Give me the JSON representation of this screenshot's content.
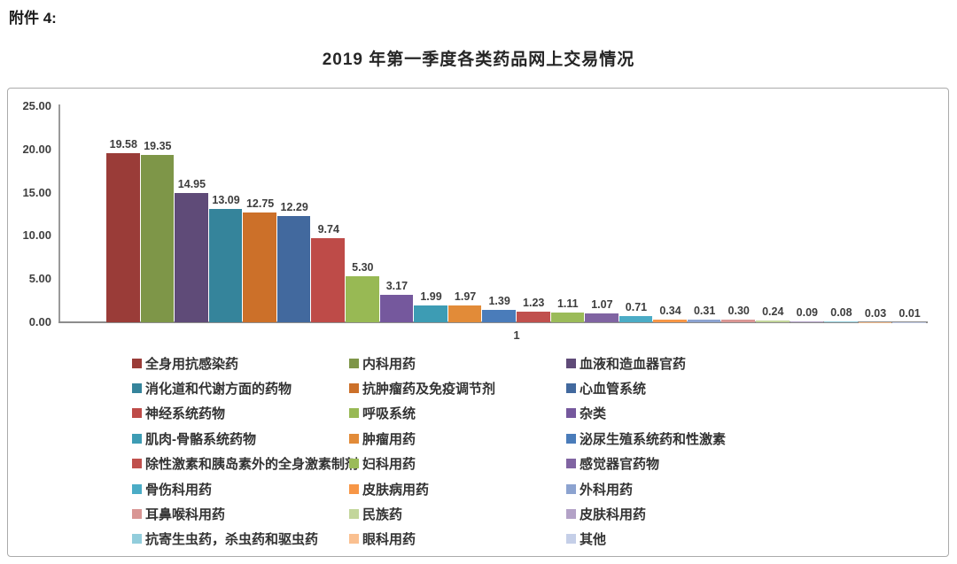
{
  "document": {
    "attachment_label": "附件 4:",
    "title": "2019 年第一季度各类药品网上交易情况"
  },
  "chart_data": {
    "type": "bar",
    "title": "2019 年第一季度各类药品网上交易情况",
    "categories": [
      "1"
    ],
    "ylim": [
      0,
      25
    ],
    "y_tick_labels": [
      "25.00",
      "20.00",
      "15.00",
      "10.00",
      "5.00",
      "0.00"
    ],
    "grid": false,
    "legend_position": "bottom",
    "value_labels_shown": true,
    "series": [
      {
        "name": "全身用抗感染药",
        "value": 19.58,
        "color": "#9a3c38"
      },
      {
        "name": "内科用药",
        "value": 19.35,
        "color": "#7e9648"
      },
      {
        "name": "血液和造血器官药",
        "value": 14.95,
        "color": "#5f4b78"
      },
      {
        "name": "消化道和代谢方面的药物",
        "value": 13.09,
        "color": "#35849b"
      },
      {
        "name": "抗肿瘤药及免疫调节剂",
        "value": 12.75,
        "color": "#cc7029"
      },
      {
        "name": "心血管系统",
        "value": 12.29,
        "color": "#42699e"
      },
      {
        "name": "神经系统药物",
        "value": 9.74,
        "color": "#be4b48"
      },
      {
        "name": "呼吸系统",
        "value": 5.3,
        "color": "#98b954"
      },
      {
        "name": "杂类",
        "value": 3.17,
        "color": "#75589d"
      },
      {
        "name": "肌肉-骨骼系统药物",
        "value": 1.99,
        "color": "#3d9cb4"
      },
      {
        "name": "肿瘤用药",
        "value": 1.97,
        "color": "#e28b38"
      },
      {
        "name": "泌尿生殖系统药和性激素",
        "value": 1.39,
        "color": "#4a7cba"
      },
      {
        "name": "除性激素和胰岛素外的全身激素制剂",
        "value": 1.23,
        "color": "#c0504d"
      },
      {
        "name": "妇科用药",
        "value": 1.11,
        "color": "#9bbb59"
      },
      {
        "name": "感觉器官药物",
        "value": 1.07,
        "color": "#8064a2"
      },
      {
        "name": "骨伤科用药",
        "value": 0.71,
        "color": "#4bacc6"
      },
      {
        "name": "皮肤病用药",
        "value": 0.34,
        "color": "#f79646"
      },
      {
        "name": "外科用药",
        "value": 0.31,
        "color": "#8ca3d0"
      },
      {
        "name": "耳鼻喉科用药",
        "value": 0.3,
        "color": "#d99694"
      },
      {
        "name": "民族药",
        "value": 0.24,
        "color": "#c3d69b"
      },
      {
        "name": "皮肤科用药",
        "value": 0.09,
        "color": "#b3a2c7"
      },
      {
        "name": "抗寄生虫药，杀虫药和驱虫药",
        "value": 0.08,
        "color": "#92cddc"
      },
      {
        "name": "眼科用药",
        "value": 0.03,
        "color": "#fac090"
      },
      {
        "name": "其他",
        "value": 0.01,
        "color": "#c5cfe8"
      }
    ]
  }
}
